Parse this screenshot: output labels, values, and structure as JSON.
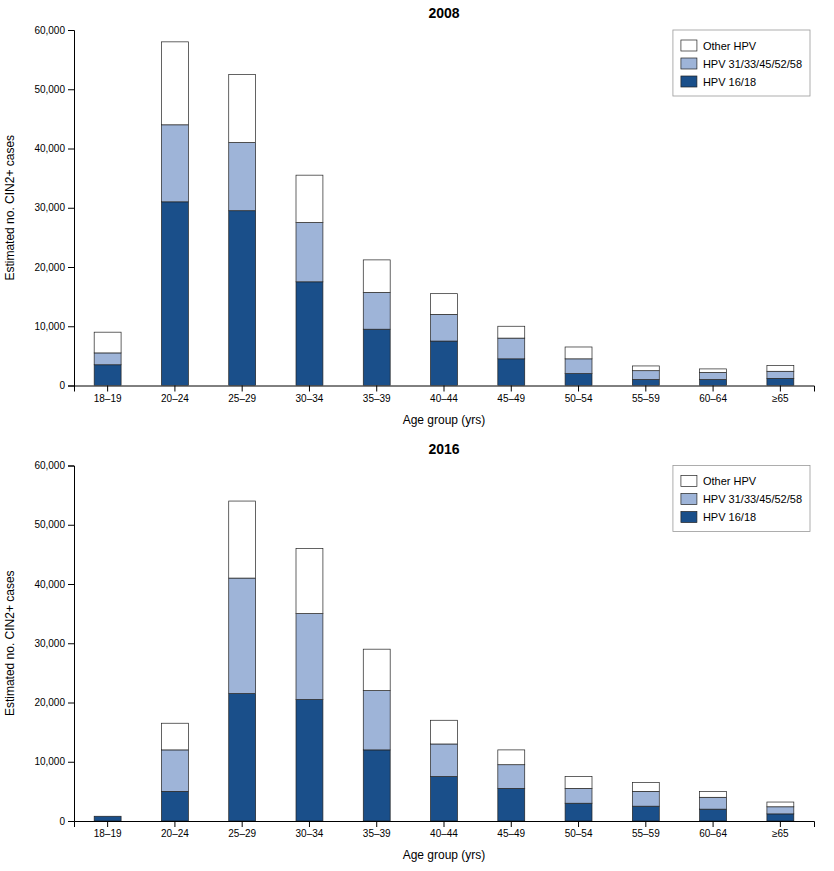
{
  "chart_data": [
    {
      "type": "bar",
      "title": "2008",
      "stacked": true,
      "grid": false,
      "legend": "upper right",
      "xlabel": "Age group (yrs)",
      "ylabel": "Estimated no. CIN2+ cases",
      "categories": [
        "18–19",
        "20–24",
        "25–29",
        "30–34",
        "35–39",
        "40–44",
        "45–49",
        "50–54",
        "55–59",
        "60–64",
        "≥65"
      ],
      "series": [
        {
          "name": "HPV 16/18",
          "color": "#1a4f8a",
          "values": [
            3500,
            31000,
            29500,
            17500,
            9500,
            7500,
            4500,
            2000,
            1000,
            1000,
            1200
          ]
        },
        {
          "name": "HPV 31/33/45/52/58",
          "color": "#9eb4d8",
          "values": [
            2000,
            13000,
            11500,
            10000,
            6200,
            4500,
            3500,
            2500,
            1500,
            1200,
            1200
          ]
        },
        {
          "name": "Other HPV",
          "color": "#ffffff",
          "values": [
            3500,
            14000,
            11500,
            8000,
            5500,
            3500,
            2000,
            2000,
            800,
            600,
            1000
          ]
        }
      ],
      "ylim": [
        0,
        60000
      ],
      "yticks": [
        0,
        {
          "value": 10000,
          "label": "10,000"
        },
        {
          "value": 20000,
          "label": "20,000"
        },
        {
          "value": 30000,
          "label": "30,000"
        },
        {
          "value": 40000,
          "label": "40,000"
        },
        {
          "value": 50000,
          "label": "50,000"
        },
        {
          "value": 60000,
          "label": "60,000"
        }
      ]
    },
    {
      "type": "bar",
      "title": "2016",
      "stacked": true,
      "grid": false,
      "legend": "upper right",
      "xlabel": "Age group (yrs)",
      "ylabel": "Estimated no. CIN2+ cases",
      "categories": [
        "18–19",
        "20–24",
        "25–29",
        "30–34",
        "35–39",
        "40–44",
        "45–49",
        "50–54",
        "55–59",
        "60–64",
        "≥65"
      ],
      "series": [
        {
          "name": "HPV 16/18",
          "color": "#1a4f8a",
          "values": [
            800,
            5000,
            21500,
            20500,
            12000,
            7500,
            5500,
            3000,
            2500,
            2000,
            1200
          ]
        },
        {
          "name": "HPV 31/33/45/52/58",
          "color": "#9eb4d8",
          "values": [
            0,
            7000,
            19500,
            14500,
            10000,
            5500,
            4000,
            2500,
            2500,
            2000,
            1200
          ]
        },
        {
          "name": "Other HPV",
          "color": "#ffffff",
          "values": [
            0,
            4500,
            13000,
            11000,
            7000,
            4000,
            2500,
            2000,
            1500,
            1000,
            800
          ]
        }
      ],
      "ylim": [
        0,
        60000
      ],
      "yticks": [
        0,
        {
          "value": 10000,
          "label": "10,000"
        },
        {
          "value": 20000,
          "label": "20,000"
        },
        {
          "value": 30000,
          "label": "30,000"
        },
        {
          "value": 40000,
          "label": "40,000"
        },
        {
          "value": 50000,
          "label": "50,000"
        },
        {
          "value": 60000,
          "label": "60,000"
        }
      ]
    }
  ]
}
